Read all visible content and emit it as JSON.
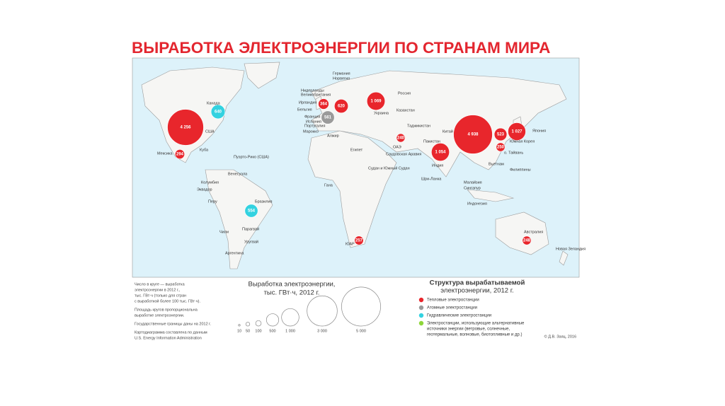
{
  "title": "ВЫРАБОТКА ЭЛЕКТРОЭНЕРГИИ ПО СТРАНАМ МИРА",
  "map": {
    "bubbles": [
      {
        "value": 4256,
        "label": "4 256",
        "color": "#e8262c"
      },
      {
        "value": 640,
        "label": "640",
        "color": "#33d2e0"
      },
      {
        "value": 294,
        "label": "294",
        "color": "#e8262c"
      },
      {
        "value": 554,
        "label": "554",
        "color": "#33d2e0"
      },
      {
        "value": 1069,
        "label": "1 069",
        "color": "#e8262c"
      },
      {
        "value": 620,
        "label": "620",
        "color": "#e8262c"
      },
      {
        "value": 561,
        "label": "561",
        "color": "#9a9a9a"
      },
      {
        "value": 364,
        "label": "364",
        "color": "#e8262c"
      },
      {
        "value": 4938,
        "label": "4 938",
        "color": "#e8262c"
      },
      {
        "value": 1027,
        "label": "1 027",
        "color": "#e8262c"
      },
      {
        "value": 523,
        "label": "523",
        "color": "#e8262c"
      },
      {
        "value": 1054,
        "label": "1 054",
        "color": "#e8262c"
      },
      {
        "value": 257,
        "label": "257",
        "color": "#e8262c"
      },
      {
        "value": 248,
        "label": "248",
        "color": "#e8262c"
      },
      {
        "value": 250,
        "label": "250",
        "color": "#e8262c"
      },
      {
        "value": 240,
        "label": "240",
        "color": "#e8262c"
      }
    ],
    "country_labels": [
      "Канада",
      "США",
      "Мексика",
      "Куба",
      "Пуэрто-Рико (США)",
      "Венесуэла",
      "Колумбия",
      "Эквадор",
      "Перу",
      "Бразилия",
      "Парагвай",
      "Чили",
      "Уругвай",
      "Аргентина",
      "Германия",
      "Норвегия",
      "Нидерланды",
      "Великобритания",
      "Ирландия",
      "Бельгия",
      "Франция",
      "Испания",
      "Португалия",
      "Марокко",
      "Алжир",
      "Египет",
      "Россия",
      "Украина",
      "Казахстан",
      "Таджикистан",
      "Пакистан",
      "Индия",
      "Китай",
      "Япония",
      "Южная Корея",
      "о. Тайвань",
      "Вьетнам",
      "Филиппины",
      "Малайзия",
      "Сингапур",
      "Индонезия",
      "Шри-Ланка",
      "Австралия",
      "Новая Зеландия",
      "Судан и Южный Судан",
      "Гана",
      "ЮАР",
      "ОАЭ",
      "Саудовская Аравия"
    ]
  },
  "legend": {
    "note": [
      "Число в круге — выработка",
      "электроэнергии в 2012 г.,",
      "тыс. ГВт·ч (только для стран",
      "с выработкой более 100 тыс. ГВт·ч).",
      "Площадь кругов пропорциональна",
      "выработке электроэнергии.",
      "Государственные границы даны на 2012 г.",
      "Картодиаграмма составлена по данным",
      "U.S. Energy Information Administration"
    ],
    "size": {
      "title": "Выработка электроэнергии,",
      "subtitle": "тыс. ГВт·ч, 2012 г.",
      "circles": [
        {
          "value": 10,
          "label": "10"
        },
        {
          "value": 50,
          "label": "50"
        },
        {
          "value": 100,
          "label": "100"
        },
        {
          "value": 500,
          "label": "500"
        },
        {
          "value": 1000,
          "label": "1 000"
        },
        {
          "value": 3000,
          "label": "3 000"
        },
        {
          "value": 5000,
          "label": "5 000"
        }
      ]
    },
    "structure": {
      "title": [
        "Структура вырабатываемой",
        "электроэнергии, 2012 г."
      ],
      "items": [
        {
          "color": "#e8262c",
          "label": [
            "Тепловые электростанции"
          ]
        },
        {
          "color": "#9a9a9a",
          "label": [
            "Атомные электростанции"
          ]
        },
        {
          "color": "#33d2e0",
          "label": [
            "Гидравлические электростанции"
          ]
        },
        {
          "color": "#8ed63a",
          "label": [
            "Электростанции, использующие альтернативные",
            "источники энергии (ветровые, солнечные,",
            "геотермальные, волновые, биотопливные и др.)"
          ]
        }
      ]
    },
    "credit": "© Д.В. Заяц, 2016"
  }
}
